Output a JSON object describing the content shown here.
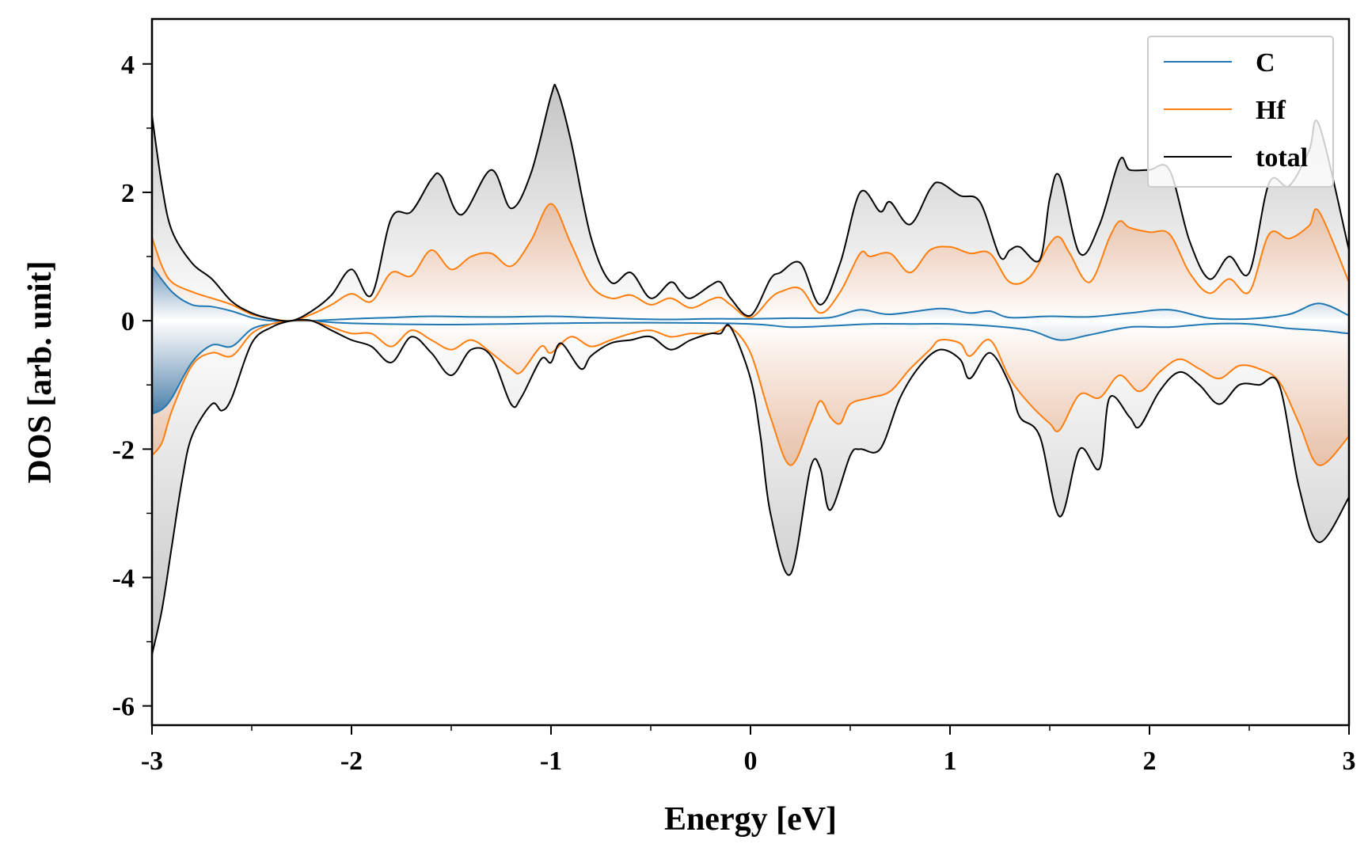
{
  "chart_data": {
    "type": "line",
    "xlabel": "Energy [eV]",
    "ylabel": "DOS [arb. unit]",
    "xlim": [
      -3,
      3
    ],
    "ylim": [
      -6.3,
      4.7
    ],
    "xticks": [
      -3,
      -2,
      -1,
      0,
      1,
      2,
      3
    ],
    "xtick_labels": [
      "-3",
      "-2",
      "-1",
      "0",
      "1",
      "2",
      "3"
    ],
    "yticks": [
      -6,
      -4,
      -2,
      0,
      2,
      4
    ],
    "ytick_labels": [
      "-6",
      "-4",
      "-2",
      "0",
      "2",
      "4"
    ],
    "grid": false,
    "legend": {
      "position": "top-right",
      "entries": [
        "C",
        "Hf",
        "total"
      ]
    },
    "colors": {
      "C": "#1f77b4",
      "Hf": "#ff7f0e",
      "total": "#000000",
      "fill_total": "#cccccc",
      "fill_C": "#5b8db8",
      "fill_Hf": "#e8a47a"
    },
    "series": [
      {
        "name": "C",
        "spin": "up",
        "x": [
          -3.0,
          -2.9,
          -2.8,
          -2.7,
          -2.6,
          -2.5,
          -2.4,
          -2.3,
          -2.2,
          -2.0,
          -1.8,
          -1.6,
          -1.4,
          -1.2,
          -1.0,
          -0.8,
          -0.6,
          -0.4,
          -0.2,
          0.0,
          0.2,
          0.4,
          0.55,
          0.7,
          0.95,
          1.1,
          1.2,
          1.3,
          1.5,
          1.7,
          1.9,
          2.1,
          2.3,
          2.5,
          2.7,
          2.85,
          3.0
        ],
        "y": [
          0.85,
          0.45,
          0.25,
          0.22,
          0.15,
          0.05,
          0.0,
          0.0,
          0.0,
          0.03,
          0.05,
          0.07,
          0.06,
          0.06,
          0.07,
          0.05,
          0.03,
          0.02,
          0.03,
          0.03,
          0.04,
          0.05,
          0.17,
          0.1,
          0.19,
          0.12,
          0.15,
          0.05,
          0.07,
          0.06,
          0.12,
          0.17,
          0.04,
          0.03,
          0.1,
          0.27,
          0.08
        ]
      },
      {
        "name": "Hf",
        "spin": "up",
        "x": [
          -3.0,
          -2.95,
          -2.9,
          -2.8,
          -2.7,
          -2.6,
          -2.5,
          -2.4,
          -2.3,
          -2.2,
          -2.1,
          -2.0,
          -1.9,
          -1.8,
          -1.7,
          -1.6,
          -1.5,
          -1.4,
          -1.3,
          -1.2,
          -1.1,
          -1.0,
          -0.9,
          -0.8,
          -0.7,
          -0.6,
          -0.5,
          -0.4,
          -0.3,
          -0.2,
          -0.15,
          -0.1,
          0.0,
          0.1,
          0.15,
          0.25,
          0.35,
          0.45,
          0.55,
          0.6,
          0.7,
          0.8,
          0.9,
          1.0,
          1.1,
          1.2,
          1.3,
          1.4,
          1.5,
          1.55,
          1.6,
          1.7,
          1.8,
          1.85,
          1.9,
          2.0,
          2.1,
          2.2,
          2.3,
          2.4,
          2.5,
          2.6,
          2.7,
          2.8,
          2.85,
          3.0
        ],
        "y": [
          1.3,
          0.85,
          0.6,
          0.45,
          0.35,
          0.25,
          0.1,
          0.03,
          0.0,
          0.1,
          0.25,
          0.42,
          0.3,
          0.75,
          0.7,
          1.1,
          0.8,
          1.0,
          1.05,
          0.85,
          1.25,
          1.82,
          1.2,
          0.55,
          0.35,
          0.4,
          0.25,
          0.35,
          0.2,
          0.33,
          0.36,
          0.25,
          0.05,
          0.35,
          0.45,
          0.5,
          0.12,
          0.45,
          1.05,
          1.0,
          1.05,
          0.75,
          1.1,
          1.15,
          1.05,
          1.05,
          0.6,
          0.68,
          1.2,
          1.3,
          1.05,
          0.6,
          1.3,
          1.55,
          1.45,
          1.38,
          1.35,
          0.75,
          0.43,
          0.65,
          0.45,
          1.35,
          1.28,
          1.48,
          1.7,
          0.6
        ]
      },
      {
        "name": "total",
        "spin": "up",
        "x": [
          -3.0,
          -2.95,
          -2.9,
          -2.8,
          -2.7,
          -2.6,
          -2.5,
          -2.4,
          -2.3,
          -2.2,
          -2.1,
          -2.0,
          -1.9,
          -1.8,
          -1.7,
          -1.6,
          -1.55,
          -1.45,
          -1.3,
          -1.2,
          -1.1,
          -1.0,
          -0.97,
          -0.9,
          -0.8,
          -0.7,
          -0.6,
          -0.5,
          -0.4,
          -0.35,
          -0.3,
          -0.2,
          -0.15,
          -0.1,
          0.0,
          0.1,
          0.15,
          0.25,
          0.35,
          0.45,
          0.55,
          0.65,
          0.7,
          0.8,
          0.9,
          0.95,
          1.05,
          1.15,
          1.25,
          1.3,
          1.35,
          1.45,
          1.5,
          1.55,
          1.65,
          1.75,
          1.85,
          1.9,
          2.0,
          2.1,
          2.2,
          2.3,
          2.4,
          2.5,
          2.6,
          2.7,
          2.8,
          2.85,
          3.0
        ],
        "y": [
          3.2,
          2.1,
          1.4,
          0.9,
          0.65,
          0.3,
          0.12,
          0.03,
          0.0,
          0.15,
          0.4,
          0.8,
          0.4,
          1.6,
          1.7,
          2.2,
          2.25,
          1.65,
          2.35,
          1.75,
          2.3,
          3.5,
          3.6,
          2.8,
          1.3,
          0.6,
          0.75,
          0.35,
          0.6,
          0.45,
          0.35,
          0.55,
          0.6,
          0.35,
          0.08,
          0.65,
          0.75,
          0.9,
          0.25,
          0.9,
          2.0,
          1.7,
          1.85,
          1.5,
          2.05,
          2.15,
          1.95,
          1.85,
          1.0,
          1.1,
          1.15,
          0.95,
          1.9,
          2.25,
          1.05,
          1.5,
          2.5,
          2.35,
          2.35,
          2.35,
          1.25,
          0.65,
          1.0,
          0.75,
          2.15,
          2.1,
          2.65,
          3.05,
          1.1
        ]
      },
      {
        "name": "C",
        "spin": "down",
        "x": [
          -3.0,
          -2.95,
          -2.9,
          -2.8,
          -2.7,
          -2.6,
          -2.5,
          -2.4,
          -2.3,
          -2.2,
          -2.0,
          -1.5,
          -1.0,
          -0.5,
          0.0,
          0.2,
          0.4,
          0.6,
          0.8,
          1.0,
          1.2,
          1.4,
          1.55,
          1.7,
          1.9,
          2.1,
          2.3,
          2.5,
          2.7,
          2.85,
          3.0
        ],
        "y": [
          -1.45,
          -1.38,
          -1.2,
          -0.65,
          -0.38,
          -0.4,
          -0.13,
          -0.05,
          0.0,
          0.0,
          -0.04,
          -0.06,
          -0.04,
          -0.03,
          -0.05,
          -0.1,
          -0.08,
          -0.05,
          -0.05,
          -0.05,
          -0.08,
          -0.15,
          -0.3,
          -0.22,
          -0.1,
          -0.1,
          -0.05,
          -0.05,
          -0.12,
          -0.15,
          -0.2
        ]
      },
      {
        "name": "Hf",
        "spin": "down",
        "x": [
          -3.0,
          -2.95,
          -2.9,
          -2.8,
          -2.7,
          -2.6,
          -2.5,
          -2.4,
          -2.3,
          -2.2,
          -2.1,
          -2.0,
          -1.9,
          -1.8,
          -1.7,
          -1.6,
          -1.5,
          -1.4,
          -1.3,
          -1.2,
          -1.15,
          -1.05,
          -1.0,
          -0.9,
          -0.8,
          -0.7,
          -0.6,
          -0.5,
          -0.4,
          -0.3,
          -0.2,
          -0.15,
          -0.1,
          0.0,
          0.1,
          0.2,
          0.3,
          0.35,
          0.4,
          0.45,
          0.5,
          0.6,
          0.7,
          0.8,
          0.9,
          0.95,
          1.05,
          1.1,
          1.2,
          1.3,
          1.4,
          1.5,
          1.55,
          1.65,
          1.75,
          1.85,
          1.95,
          2.05,
          2.15,
          2.25,
          2.35,
          2.45,
          2.55,
          2.65,
          2.75,
          2.85,
          3.0
        ],
        "y": [
          -2.1,
          -1.9,
          -1.4,
          -0.7,
          -0.5,
          -0.55,
          -0.2,
          -0.05,
          0.0,
          0.0,
          -0.1,
          -0.2,
          -0.2,
          -0.4,
          -0.15,
          -0.3,
          -0.45,
          -0.3,
          -0.5,
          -0.75,
          -0.8,
          -0.4,
          -0.5,
          -0.25,
          -0.4,
          -0.3,
          -0.2,
          -0.15,
          -0.25,
          -0.2,
          -0.2,
          -0.15,
          -0.1,
          -0.5,
          -1.5,
          -2.25,
          -1.6,
          -1.25,
          -1.5,
          -1.6,
          -1.3,
          -1.2,
          -1.1,
          -0.75,
          -0.45,
          -0.3,
          -0.35,
          -0.55,
          -0.3,
          -0.9,
          -1.3,
          -1.6,
          -1.7,
          -1.15,
          -1.2,
          -0.85,
          -1.1,
          -0.8,
          -0.6,
          -0.75,
          -0.9,
          -0.7,
          -0.75,
          -0.95,
          -1.6,
          -2.25,
          -1.8
        ]
      },
      {
        "name": "total",
        "spin": "down",
        "x": [
          -3.0,
          -2.95,
          -2.9,
          -2.85,
          -2.8,
          -2.7,
          -2.65,
          -2.6,
          -2.5,
          -2.4,
          -2.3,
          -2.2,
          -2.1,
          -2.0,
          -1.9,
          -1.8,
          -1.7,
          -1.6,
          -1.5,
          -1.4,
          -1.3,
          -1.2,
          -1.15,
          -1.05,
          -1.0,
          -0.95,
          -0.85,
          -0.8,
          -0.7,
          -0.6,
          -0.5,
          -0.4,
          -0.3,
          -0.2,
          -0.15,
          -0.1,
          0.0,
          0.05,
          0.1,
          0.2,
          0.3,
          0.35,
          0.4,
          0.5,
          0.55,
          0.65,
          0.75,
          0.85,
          0.95,
          1.05,
          1.1,
          1.2,
          1.3,
          1.35,
          1.45,
          1.55,
          1.65,
          1.75,
          1.8,
          1.9,
          1.95,
          2.05,
          2.15,
          2.25,
          2.35,
          2.45,
          2.55,
          2.65,
          2.75,
          2.85,
          3.0
        ],
        "y": [
          -5.2,
          -4.5,
          -3.5,
          -2.5,
          -1.8,
          -1.3,
          -1.4,
          -1.2,
          -0.35,
          -0.1,
          0.0,
          0.0,
          -0.15,
          -0.3,
          -0.4,
          -0.65,
          -0.25,
          -0.5,
          -0.85,
          -0.45,
          -0.55,
          -1.3,
          -1.2,
          -0.6,
          -0.65,
          -0.35,
          -0.75,
          -0.55,
          -0.35,
          -0.3,
          -0.25,
          -0.45,
          -0.3,
          -0.2,
          -0.2,
          -0.1,
          -0.9,
          -1.8,
          -3.0,
          -3.95,
          -2.3,
          -2.3,
          -2.95,
          -2.1,
          -2.0,
          -2.0,
          -1.2,
          -0.7,
          -0.45,
          -0.6,
          -0.9,
          -0.5,
          -1.0,
          -1.5,
          -1.8,
          -3.05,
          -2.0,
          -2.3,
          -1.2,
          -1.5,
          -1.65,
          -1.1,
          -0.8,
          -1.0,
          -1.3,
          -1.0,
          -1.0,
          -1.0,
          -2.6,
          -3.45,
          -2.75
        ]
      }
    ]
  }
}
